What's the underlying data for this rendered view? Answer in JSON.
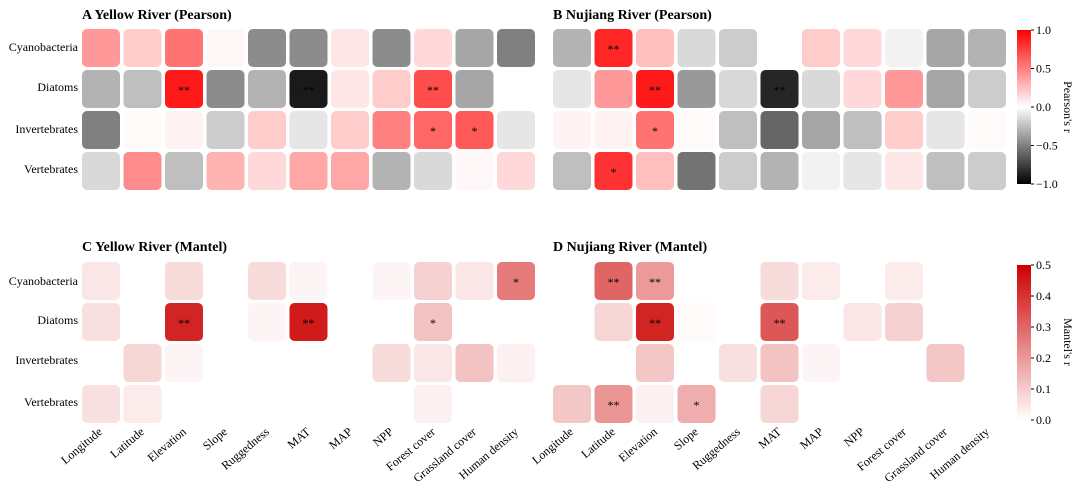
{
  "rows": [
    "Cyanobacteria",
    "Diatoms",
    "Invertebrates",
    "Vertebrates"
  ],
  "columns": [
    "Longitude",
    "Latitude",
    "Elevation",
    "Slope",
    "Ruggedness",
    "MAT",
    "MAP",
    "NPP",
    "Forest cover",
    "Grassland cover",
    "Human density"
  ],
  "colorbars": [
    {
      "title": "Pearson's r",
      "ticks": [
        "1.0",
        "0.5",
        "0.0",
        "−0.5",
        "−1.0"
      ]
    },
    {
      "title": "Mantel's r",
      "ticks": [
        "0.5",
        "0.4",
        "0.3",
        "0.2",
        "0.1",
        "0.0"
      ]
    }
  ],
  "chart_data": [
    {
      "type": "heatmap",
      "metric": "pearson",
      "title": "A  Yellow River (Pearson)",
      "vmin": -1,
      "vmax": 1,
      "values": [
        [
          0.4,
          0.2,
          0.55,
          0.03,
          -0.45,
          -0.45,
          0.1,
          -0.45,
          0.15,
          -0.35,
          -0.5
        ],
        [
          -0.3,
          -0.25,
          0.9,
          -0.45,
          -0.3,
          -0.9,
          0.1,
          0.2,
          0.7,
          -0.35,
          0.0
        ],
        [
          -0.5,
          0.02,
          0.05,
          -0.2,
          0.2,
          -0.1,
          0.2,
          0.5,
          0.6,
          0.65,
          -0.1
        ],
        [
          -0.15,
          0.45,
          -0.25,
          0.3,
          0.15,
          0.35,
          0.35,
          -0.3,
          -0.15,
          0.03,
          0.15
        ]
      ],
      "stars": [
        [
          "",
          "",
          "",
          "",
          "",
          "",
          "",
          "",
          "",
          "",
          ""
        ],
        [
          "",
          "",
          "**",
          "",
          "",
          "**",
          "",
          "",
          "**",
          "",
          ""
        ],
        [
          "",
          "",
          "",
          "",
          "",
          "",
          "",
          "",
          "*",
          "*",
          ""
        ],
        [
          "",
          "",
          "",
          "",
          "",
          "",
          "",
          "",
          "",
          "",
          ""
        ]
      ]
    },
    {
      "type": "heatmap",
      "metric": "pearson",
      "title": "B  Nujiang River (Pearson)",
      "vmin": -1,
      "vmax": 1,
      "values": [
        [
          -0.3,
          0.85,
          0.25,
          -0.15,
          -0.2,
          0.0,
          0.2,
          0.15,
          -0.05,
          -0.35,
          -0.3
        ],
        [
          -0.1,
          0.4,
          0.9,
          -0.4,
          -0.15,
          -0.85,
          -0.15,
          0.15,
          0.4,
          -0.35,
          -0.2
        ],
        [
          0.05,
          0.05,
          0.55,
          0.02,
          -0.25,
          -0.6,
          -0.35,
          -0.25,
          0.2,
          -0.1,
          0.02
        ],
        [
          -0.25,
          0.8,
          0.25,
          -0.55,
          -0.2,
          -0.3,
          -0.05,
          -0.1,
          0.1,
          -0.25,
          -0.2
        ]
      ],
      "stars": [
        [
          "",
          "**",
          "",
          "",
          "",
          "",
          "",
          "",
          "",
          "",
          ""
        ],
        [
          "",
          "",
          "**",
          "",
          "",
          "**",
          "",
          "",
          "",
          "",
          ""
        ],
        [
          "",
          "",
          "*",
          "",
          "",
          "",
          "",
          "",
          "",
          "",
          ""
        ],
        [
          "",
          "*",
          "",
          "",
          "",
          "",
          "",
          "",
          "",
          "",
          ""
        ]
      ]
    },
    {
      "type": "heatmap",
      "metric": "mantel",
      "title": "C  Yellow River (Mantel)",
      "vmin": 0,
      "vmax": 0.5,
      "values": [
        [
          0.05,
          null,
          0.07,
          null,
          0.07,
          0.02,
          null,
          0.02,
          0.09,
          0.05,
          0.26
        ],
        [
          0.06,
          null,
          0.43,
          null,
          0.02,
          0.45,
          null,
          null,
          0.12,
          null,
          null
        ],
        [
          null,
          0.08,
          0.02,
          null,
          null,
          null,
          null,
          0.07,
          0.05,
          0.12,
          0.03
        ],
        [
          0.06,
          0.04,
          null,
          null,
          null,
          null,
          null,
          null,
          0.03,
          null,
          null
        ]
      ],
      "stars": [
        [
          "",
          "",
          "",
          "",
          "",
          "",
          "",
          "",
          "",
          "",
          "*"
        ],
        [
          "",
          "",
          "**",
          "",
          "",
          "**",
          "",
          "",
          "*",
          "",
          ""
        ],
        [
          "",
          "",
          "",
          "",
          "",
          "",
          "",
          "",
          "",
          "",
          ""
        ],
        [
          "",
          "",
          "",
          "",
          "",
          "",
          "",
          "",
          "",
          "",
          ""
        ]
      ]
    },
    {
      "type": "heatmap",
      "metric": "mantel",
      "title": "D  Nujiang River (Mantel)",
      "vmin": 0,
      "vmax": 0.5,
      "values": [
        [
          null,
          0.3,
          0.2,
          null,
          null,
          0.07,
          0.04,
          null,
          0.04,
          null,
          null
        ],
        [
          null,
          0.08,
          0.43,
          0.01,
          null,
          0.33,
          null,
          0.05,
          0.09,
          null,
          null
        ],
        [
          null,
          null,
          0.11,
          null,
          0.06,
          0.12,
          0.02,
          null,
          null,
          0.11,
          null
        ],
        [
          0.11,
          0.21,
          0.03,
          0.16,
          null,
          0.08,
          null,
          null,
          null,
          null,
          null
        ]
      ],
      "stars": [
        [
          "",
          "**",
          "**",
          "",
          "",
          "",
          "",
          "",
          "",
          "",
          ""
        ],
        [
          "",
          "",
          "**",
          "",
          "",
          "**",
          "",
          "",
          "",
          "",
          ""
        ],
        [
          "",
          "",
          "",
          "",
          "",
          "",
          "",
          "",
          "",
          "",
          ""
        ],
        [
          "",
          "**",
          "",
          "*",
          "",
          "",
          "",
          "",
          "",
          "",
          ""
        ]
      ]
    }
  ]
}
